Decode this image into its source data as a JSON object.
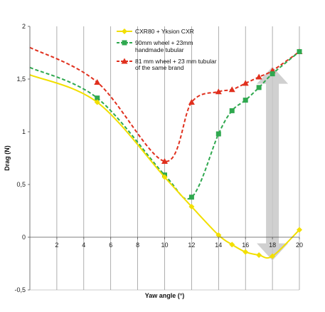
{
  "chart_data": {
    "type": "line",
    "xlabel": "Yaw angle (°)",
    "ylabel": "Drag (N)",
    "xlim": [
      0,
      20
    ],
    "ylim": [
      -0.5,
      2
    ],
    "x_ticks": [
      2,
      4,
      6,
      8,
      10,
      12,
      14,
      16,
      18,
      20
    ],
    "x_tick_labels": [
      "2",
      "4",
      "6",
      "8",
      "10",
      "12",
      "14",
      "16",
      "18",
      "20"
    ],
    "y_ticks": [
      -0.5,
      0,
      0.5,
      1,
      1.5,
      2
    ],
    "y_tick_labels": [
      "-0,5",
      "0",
      "0,5",
      "1",
      "1,5",
      "2"
    ],
    "grid": "vertical",
    "legend_position": "top-right",
    "series": [
      {
        "name": "CXR80 + Yksion CXR",
        "color": "#f2df00",
        "style": "solid",
        "marker": "diamond",
        "x": [
          0,
          5,
          10,
          12,
          14,
          15,
          16,
          17,
          18,
          20
        ],
        "y": [
          1.54,
          1.28,
          0.57,
          0.29,
          0.02,
          -0.07,
          -0.14,
          -0.17,
          -0.18,
          0.07
        ]
      },
      {
        "name": "90mm wheel + 23mm handmade tubular",
        "legend_lines": [
          "90mm wheel + 23mm",
          "handmade tubular"
        ],
        "color": "#2fa84f",
        "style": "dashed",
        "marker": "square",
        "x": [
          0,
          5,
          10,
          12,
          14,
          15,
          16,
          17,
          18,
          20
        ],
        "y": [
          1.61,
          1.32,
          0.59,
          0.38,
          0.98,
          1.2,
          1.3,
          1.42,
          1.55,
          1.76
        ]
      },
      {
        "name": "81 mm wheel + 23 mm tubular of the same brand",
        "legend_lines": [
          "81 mm wheel + 23 mm tubular",
          "of the same brand"
        ],
        "color": "#e0301e",
        "style": "dashed",
        "marker": "triangle",
        "x": [
          0,
          5,
          10,
          12,
          14,
          15,
          16,
          17,
          18,
          20
        ],
        "y": [
          1.8,
          1.47,
          0.72,
          1.28,
          1.38,
          1.4,
          1.46,
          1.52,
          1.58,
          1.76
        ]
      }
    ],
    "annotations": [
      {
        "type": "double-arrow",
        "x": 18,
        "y_from": -0.18,
        "y_to": 1.55,
        "color": "#c8c8c8"
      }
    ]
  }
}
